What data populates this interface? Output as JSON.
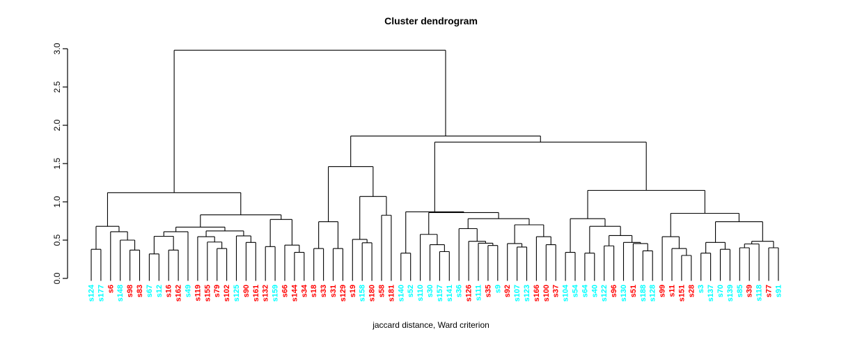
{
  "title": "Cluster dendrogram",
  "xlabel": "jaccard distance, Ward criterion",
  "colors": {
    "cyan": "#00ffff",
    "red": "#ff0000",
    "line": "#000000"
  },
  "y_axis": {
    "min": 0,
    "max": 3,
    "tick_labels": [
      "0.0",
      "0.5",
      "1.0",
      "1.5",
      "2.0",
      "2.5",
      "3.0"
    ]
  },
  "chart_data": {
    "type": "dendrogram",
    "title": "Cluster dendrogram",
    "caption": "jaccard distance, Ward criterion",
    "ylim": [
      0,
      3
    ],
    "legend_position": "none",
    "grid": false,
    "leaves": [
      {
        "label": "s124",
        "color": "cyan"
      },
      {
        "label": "s177",
        "color": "cyan"
      },
      {
        "label": "s6",
        "color": "red"
      },
      {
        "label": "s148",
        "color": "cyan"
      },
      {
        "label": "s98",
        "color": "red"
      },
      {
        "label": "s83",
        "color": "red"
      },
      {
        "label": "s67",
        "color": "cyan"
      },
      {
        "label": "s12",
        "color": "cyan"
      },
      {
        "label": "s16",
        "color": "red"
      },
      {
        "label": "s162",
        "color": "red"
      },
      {
        "label": "s49",
        "color": "cyan"
      },
      {
        "label": "s119",
        "color": "red"
      },
      {
        "label": "s155",
        "color": "red"
      },
      {
        "label": "s79",
        "color": "red"
      },
      {
        "label": "s102",
        "color": "red"
      },
      {
        "label": "s125",
        "color": "cyan"
      },
      {
        "label": "s90",
        "color": "red"
      },
      {
        "label": "s161",
        "color": "red"
      },
      {
        "label": "s132",
        "color": "red"
      },
      {
        "label": "s159",
        "color": "cyan"
      },
      {
        "label": "s66",
        "color": "red"
      },
      {
        "label": "s144",
        "color": "red"
      },
      {
        "label": "s34",
        "color": "red"
      },
      {
        "label": "s18",
        "color": "red"
      },
      {
        "label": "s33",
        "color": "red"
      },
      {
        "label": "s31",
        "color": "red"
      },
      {
        "label": "s129",
        "color": "red"
      },
      {
        "label": "s19",
        "color": "red"
      },
      {
        "label": "s158",
        "color": "cyan"
      },
      {
        "label": "s180",
        "color": "red"
      },
      {
        "label": "s58",
        "color": "red"
      },
      {
        "label": "s181",
        "color": "red"
      },
      {
        "label": "s140",
        "color": "cyan"
      },
      {
        "label": "s52",
        "color": "cyan"
      },
      {
        "label": "s110",
        "color": "cyan"
      },
      {
        "label": "s30",
        "color": "cyan"
      },
      {
        "label": "s157",
        "color": "cyan"
      },
      {
        "label": "s141",
        "color": "cyan"
      },
      {
        "label": "s36",
        "color": "cyan"
      },
      {
        "label": "s126",
        "color": "red"
      },
      {
        "label": "s111",
        "color": "cyan"
      },
      {
        "label": "s35",
        "color": "red"
      },
      {
        "label": "s9",
        "color": "cyan"
      },
      {
        "label": "s92",
        "color": "red"
      },
      {
        "label": "s107",
        "color": "cyan"
      },
      {
        "label": "s123",
        "color": "cyan"
      },
      {
        "label": "s166",
        "color": "red"
      },
      {
        "label": "s100",
        "color": "red"
      },
      {
        "label": "s37",
        "color": "red"
      },
      {
        "label": "s104",
        "color": "cyan"
      },
      {
        "label": "s54",
        "color": "cyan"
      },
      {
        "label": "s64",
        "color": "cyan"
      },
      {
        "label": "s40",
        "color": "cyan"
      },
      {
        "label": "s122",
        "color": "cyan"
      },
      {
        "label": "s96",
        "color": "red"
      },
      {
        "label": "s130",
        "color": "cyan"
      },
      {
        "label": "s51",
        "color": "red"
      },
      {
        "label": "s188",
        "color": "cyan"
      },
      {
        "label": "s128",
        "color": "cyan"
      },
      {
        "label": "s99",
        "color": "red"
      },
      {
        "label": "s11",
        "color": "red"
      },
      {
        "label": "s151",
        "color": "red"
      },
      {
        "label": "s28",
        "color": "red"
      },
      {
        "label": "s3",
        "color": "cyan"
      },
      {
        "label": "s137",
        "color": "cyan"
      },
      {
        "label": "s70",
        "color": "cyan"
      },
      {
        "label": "s139",
        "color": "cyan"
      },
      {
        "label": "s85",
        "color": "cyan"
      },
      {
        "label": "s39",
        "color": "red"
      },
      {
        "label": "s118",
        "color": "cyan"
      },
      {
        "label": "s77",
        "color": "red"
      },
      {
        "label": "s91",
        "color": "cyan"
      }
    ],
    "tree": {
      "h": 2.98,
      "c": [
        {
          "h": 1.12,
          "c": [
            {
              "h": 0.68,
              "c": [
                {
                  "h": 0.38,
                  "c": [
                    "s124",
                    "s177"
                  ]
                },
                {
                  "h": 0.61,
                  "c": [
                    "s6",
                    {
                      "h": 0.5,
                      "c": [
                        "s148",
                        {
                          "h": 0.37,
                          "c": [
                            "s98",
                            "s83"
                          ]
                        }
                      ]
                    }
                  ]
                }
              ]
            },
            {
              "h": 0.83,
              "c": [
                {
                  "h": 0.67,
                  "c": [
                    {
                      "h": 0.61,
                      "c": [
                        {
                          "h": 0.55,
                          "c": [
                            {
                              "h": 0.32,
                              "c": [
                                "s67",
                                "s12"
                              ]
                            },
                            {
                              "h": 0.37,
                              "c": [
                                "s16",
                                "s162"
                              ]
                            }
                          ]
                        },
                        "s49"
                      ]
                    },
                    {
                      "h": 0.62,
                      "c": [
                        {
                          "h": 0.545,
                          "c": [
                            "s119",
                            {
                              "h": 0.475,
                              "c": [
                                "s155",
                                {
                                  "h": 0.39,
                                  "c": [
                                    "s79",
                                    "s102"
                                  ]
                                }
                              ]
                            }
                          ]
                        },
                        {
                          "h": 0.555,
                          "c": [
                            "s125",
                            {
                              "h": 0.47,
                              "c": [
                                "s90",
                                "s161"
                              ]
                            }
                          ]
                        }
                      ]
                    }
                  ]
                },
                {
                  "h": 0.77,
                  "c": [
                    {
                      "h": 0.415,
                      "c": [
                        "s132",
                        "s159"
                      ]
                    },
                    {
                      "h": 0.435,
                      "c": [
                        "s66",
                        {
                          "h": 0.34,
                          "c": [
                            "s144",
                            "s34"
                          ]
                        }
                      ]
                    }
                  ]
                }
              ]
            }
          ]
        },
        {
          "h": 1.86,
          "c": [
            {
              "h": 1.46,
              "c": [
                {
                  "h": 0.74,
                  "c": [
                    {
                      "h": 0.39,
                      "c": [
                        "s18",
                        "s33"
                      ]
                    },
                    {
                      "h": 0.39,
                      "c": [
                        "s31",
                        "s129"
                      ]
                    }
                  ]
                },
                {
                  "h": 1.07,
                  "c": [
                    {
                      "h": 0.51,
                      "c": [
                        "s19",
                        {
                          "h": 0.465,
                          "c": [
                            "s158",
                            "s180"
                          ]
                        }
                      ]
                    },
                    {
                      "h": 0.825,
                      "c": [
                        "s58",
                        "s181"
                      ]
                    }
                  ]
                }
              ]
            },
            {
              "h": 1.78,
              "c": [
                {
                  "h": 0.87,
                  "c": [
                    {
                      "h": 0.33,
                      "c": [
                        "s140",
                        "s52"
                      ]
                    },
                    {
                      "h": 0.86,
                      "c": [
                        {
                          "h": 0.575,
                          "c": [
                            "s110",
                            {
                              "h": 0.44,
                              "c": [
                                "s30",
                                {
                                  "h": 0.35,
                                  "c": [
                                    "s157",
                                    "s141"
                                  ]
                                }
                              ]
                            }
                          ]
                        },
                        {
                          "h": 0.78,
                          "c": [
                            {
                              "h": 0.65,
                              "c": [
                                "s36",
                                {
                                  "h": 0.485,
                                  "c": [
                                    "s126",
                                    {
                                      "h": 0.46,
                                      "c": [
                                        "s111",
                                        {
                                          "h": 0.43,
                                          "c": [
                                            "s35",
                                            "s9"
                                          ]
                                        }
                                      ]
                                    }
                                  ]
                                }
                              ]
                            },
                            {
                              "h": 0.7,
                              "c": [
                                {
                                  "h": 0.455,
                                  "c": [
                                    "s92",
                                    {
                                      "h": 0.41,
                                      "c": [
                                        "s107",
                                        "s123"
                                      ]
                                    }
                                  ]
                                },
                                {
                                  "h": 0.545,
                                  "c": [
                                    "s166",
                                    {
                                      "h": 0.44,
                                      "c": [
                                        "s100",
                                        "s37"
                                      ]
                                    }
                                  ]
                                }
                              ]
                            }
                          ]
                        }
                      ]
                    }
                  ]
                },
                {
                  "h": 1.15,
                  "c": [
                    {
                      "h": 0.78,
                      "c": [
                        {
                          "h": 0.34,
                          "c": [
                            "s104",
                            "s54"
                          ]
                        },
                        {
                          "h": 0.68,
                          "c": [
                            {
                              "h": 0.33,
                              "c": [
                                "s64",
                                "s40"
                              ]
                            },
                            {
                              "h": 0.56,
                              "c": [
                                {
                                  "h": 0.425,
                                  "c": [
                                    "s122",
                                    "s96"
                                  ]
                                },
                                {
                                  "h": 0.47,
                                  "c": [
                                    "s130",
                                    {
                                      "h": 0.455,
                                      "c": [
                                        "s51",
                                        {
                                          "h": 0.36,
                                          "c": [
                                            "s188",
                                            "s128"
                                          ]
                                        }
                                      ]
                                    }
                                  ]
                                }
                              ]
                            }
                          ]
                        }
                      ]
                    },
                    {
                      "h": 0.85,
                      "c": [
                        {
                          "h": 0.545,
                          "c": [
                            "s99",
                            {
                              "h": 0.39,
                              "c": [
                                "s11",
                                {
                                  "h": 0.3,
                                  "c": [
                                    "s151",
                                    "s28"
                                  ]
                                }
                              ]
                            }
                          ]
                        },
                        {
                          "h": 0.74,
                          "c": [
                            {
                              "h": 0.47,
                              "c": [
                                {
                                  "h": 0.33,
                                  "c": [
                                    "s3",
                                    "s137"
                                  ]
                                },
                                {
                                  "h": 0.38,
                                  "c": [
                                    "s70",
                                    "s139"
                                  ]
                                }
                              ]
                            },
                            {
                              "h": 0.485,
                              "c": [
                                {
                                  "h": 0.45,
                                  "c": [
                                    {
                                      "h": 0.4,
                                      "c": [
                                        "s85",
                                        "s39"
                                      ]
                                    },
                                    "s118"
                                  ]
                                },
                                {
                                  "h": 0.4,
                                  "c": [
                                    "s77",
                                    "s91"
                                  ]
                                }
                              ]
                            }
                          ]
                        }
                      ]
                    }
                  ]
                }
              ]
            }
          ]
        }
      ]
    }
  }
}
